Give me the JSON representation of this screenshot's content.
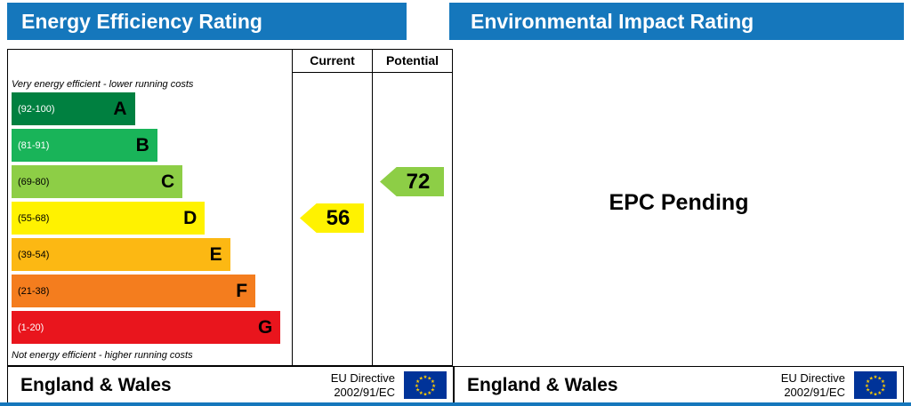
{
  "header": {
    "left_title": "Energy Efficiency Rating",
    "right_title": "Environmental Impact Rating",
    "bar_color": "#1577bc"
  },
  "columns": {
    "current": "Current",
    "potential": "Potential"
  },
  "chart": {
    "top_note": "Very energy efficient - lower running costs",
    "bottom_note": "Not energy efficient - higher running costs",
    "bands": [
      {
        "letter": "A",
        "range": "(92-100)",
        "color": "#008040",
        "width_pct": 44,
        "range_color": "#ffffff"
      },
      {
        "letter": "B",
        "range": "(81-91)",
        "color": "#19b459",
        "width_pct": 52,
        "range_color": "#ffffff"
      },
      {
        "letter": "C",
        "range": "(69-80)",
        "color": "#8dce46",
        "width_pct": 61,
        "range_color": "#000000"
      },
      {
        "letter": "D",
        "range": "(55-68)",
        "color": "#fff200",
        "width_pct": 69,
        "range_color": "#000000"
      },
      {
        "letter": "E",
        "range": "(39-54)",
        "color": "#fcb813",
        "width_pct": 78,
        "range_color": "#000000"
      },
      {
        "letter": "F",
        "range": "(21-38)",
        "color": "#f47d1e",
        "width_pct": 87,
        "range_color": "#000000"
      },
      {
        "letter": "G",
        "range": "(1-20)",
        "color": "#e9151d",
        "width_pct": 96,
        "range_color": "#ffffff"
      }
    ],
    "current": {
      "value": "56",
      "band": "D",
      "color": "#fff200"
    },
    "potential": {
      "value": "72",
      "band": "C",
      "color": "#8dce46"
    }
  },
  "right_panel": {
    "status": "EPC Pending"
  },
  "footer": {
    "region": "England & Wales",
    "directive_line1": "EU Directive",
    "directive_line2": "2002/91/EC",
    "flag_color": "#003399",
    "star_color": "#ffcc00"
  },
  "chart_data": {
    "type": "bar",
    "title": "Energy Efficiency Rating",
    "categories": [
      "A",
      "B",
      "C",
      "D",
      "E",
      "F",
      "G"
    ],
    "band_ranges": [
      "92-100",
      "81-91",
      "69-80",
      "55-68",
      "39-54",
      "21-38",
      "1-20"
    ],
    "band_colors": [
      "#008040",
      "#19b459",
      "#8dce46",
      "#fff200",
      "#fcb813",
      "#f47d1e",
      "#e9151d"
    ],
    "values_scale": [
      0,
      100
    ],
    "series": [
      {
        "name": "Current",
        "value": 56,
        "band": "D"
      },
      {
        "name": "Potential",
        "value": 72,
        "band": "C"
      }
    ],
    "annotations": [
      "Very energy efficient - lower running costs",
      "Not energy efficient - higher running costs"
    ],
    "second_panel": {
      "title": "Environmental Impact Rating",
      "status": "EPC Pending"
    },
    "footer": "England & Wales — EU Directive 2002/91/EC"
  }
}
